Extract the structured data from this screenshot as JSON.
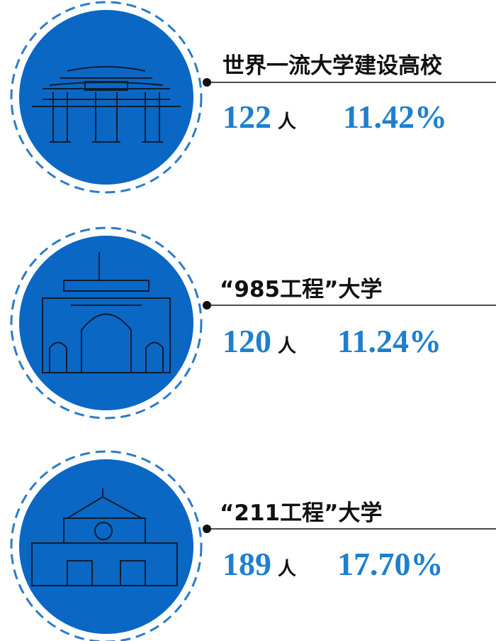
{
  "items": [
    {
      "title": "世界一流大学建设高校",
      "count": "122",
      "unit": "人",
      "percent": "11.42%"
    },
    {
      "title": "“985工程”大学",
      "count": "120",
      "unit": "人",
      "percent": "11.24%"
    },
    {
      "title": "“211工程”大学",
      "count": "189",
      "unit": "人",
      "percent": "17.70%"
    }
  ]
}
